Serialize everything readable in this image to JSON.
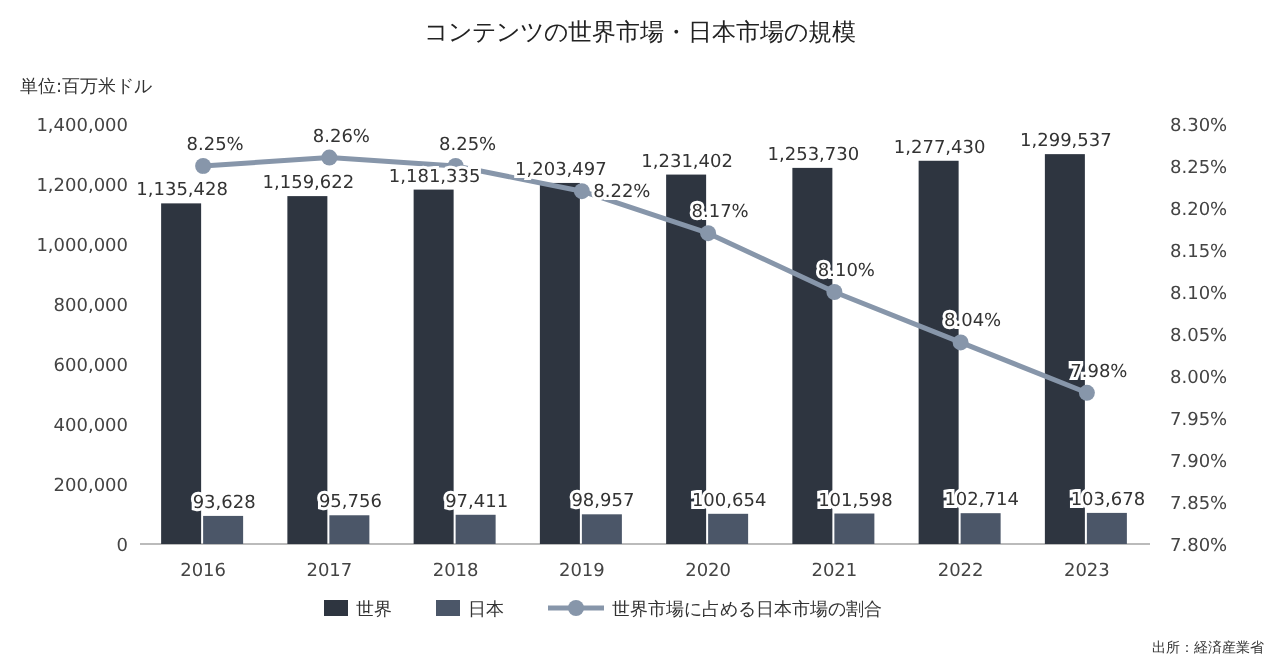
{
  "chart_data": {
    "type": "bar",
    "title": "コンテンツの世界市場・日本市場の規模",
    "annotations": [
      "単位:百万米ドル",
      "出所：経済産業省"
    ],
    "categories": [
      "2016",
      "2017",
      "2018",
      "2019",
      "2020",
      "2021",
      "2022",
      "2023"
    ],
    "series": [
      {
        "name": "世界",
        "color": "#2e3540",
        "values": [
          1135428,
          1159622,
          1181335,
          1203497,
          1231402,
          1253730,
          1277430,
          1299537
        ],
        "value_labels": [
          "1,135,428",
          "1,159,622",
          "1,181,335",
          "1,203,497",
          "1,231,402",
          "1,253,730",
          "1,277,430",
          "1,299,537"
        ]
      },
      {
        "name": "日本",
        "color": "#4b5668",
        "values": [
          93628,
          95756,
          97411,
          98957,
          100654,
          101598,
          102714,
          103678
        ],
        "value_labels": [
          "93,628",
          "95,756",
          "97,411",
          "98,957",
          "100,654",
          "101,598",
          "102,714",
          "103,678"
        ]
      },
      {
        "name": "世界市場に占める日本市場の割合",
        "type": "line",
        "axis": "y2",
        "color": "#8796aa",
        "marker": "circle",
        "values": [
          8.25,
          8.26,
          8.25,
          8.22,
          8.17,
          8.1,
          8.04,
          7.98
        ],
        "value_labels": [
          "8.25%",
          "8.26%",
          "8.25%",
          "8.22%",
          "8.17%",
          "8.10%",
          "8.04%",
          "7.98%"
        ]
      }
    ],
    "ylim": [
      0,
      1400000
    ],
    "yticks": [
      {
        "value": 0,
        "label": "0"
      },
      {
        "value": 200000,
        "label": "200,000"
      },
      {
        "value": 400000,
        "label": "400,000"
      },
      {
        "value": 600000,
        "label": "600,000"
      },
      {
        "value": 800000,
        "label": "800,000"
      },
      {
        "value": 1000000,
        "label": "1,000,000"
      },
      {
        "value": 1200000,
        "label": "1,200,000"
      },
      {
        "value": 1400000,
        "label": "1,400,000"
      }
    ],
    "y2lim": [
      7.8,
      8.3
    ],
    "y2ticks": [
      {
        "value": 7.8,
        "label": "7.80%"
      },
      {
        "value": 7.85,
        "label": "7.85%"
      },
      {
        "value": 7.9,
        "label": "7.90%"
      },
      {
        "value": 7.95,
        "label": "7.95%"
      },
      {
        "value": 8.0,
        "label": "8.00%"
      },
      {
        "value": 8.05,
        "label": "8.05%"
      },
      {
        "value": 8.1,
        "label": "8.10%"
      },
      {
        "value": 8.15,
        "label": "8.15%"
      },
      {
        "value": 8.2,
        "label": "8.20%"
      },
      {
        "value": 8.25,
        "label": "8.25%"
      },
      {
        "value": 8.3,
        "label": "8.30%"
      }
    ],
    "legend": "bottom"
  }
}
